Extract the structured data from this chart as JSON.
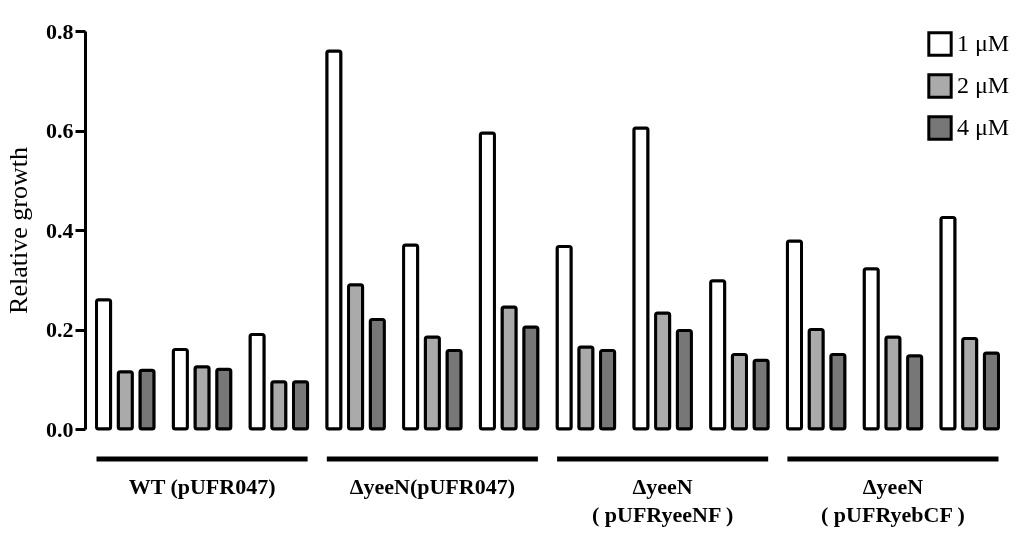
{
  "chart_data": {
    "type": "bar",
    "ylabel": "Relative growth",
    "categories": [
      null,
      null,
      null,
      null,
      null,
      null,
      null,
      null,
      null,
      null,
      null,
      null
    ],
    "series": [
      {
        "name": "1 μM",
        "color": "#ffffff",
        "values": [
          0.26,
          0.16,
          0.19,
          0.76,
          0.37,
          0.595,
          0.367,
          0.605,
          0.298,
          0.378,
          0.322,
          0.425
        ]
      },
      {
        "name": "2 μM",
        "color": "#aaaaaa",
        "values": [
          0.115,
          0.125,
          0.095,
          0.29,
          0.185,
          0.245,
          0.165,
          0.233,
          0.15,
          0.2,
          0.185,
          0.182
        ]
      },
      {
        "name": "4 μM",
        "color": "#777777",
        "values": [
          0.118,
          0.12,
          0.095,
          0.22,
          0.158,
          0.205,
          0.158,
          0.198,
          0.138,
          0.15,
          0.147,
          0.153
        ]
      }
    ],
    "ylim": [
      0,
      0.8
    ],
    "yticks": [
      {
        "value": 0,
        "label": "0.0"
      },
      0.2,
      0.4,
      0.6,
      0.8
    ],
    "grid": false,
    "legend": "top right",
    "annotations": [
      "WT (pUFR047)",
      "ΔyeeN(pUFR047)",
      "ΔyeeN\n( pUFRyeeNF )",
      "ΔyeeN\n( pUFRyebCF )"
    ]
  }
}
